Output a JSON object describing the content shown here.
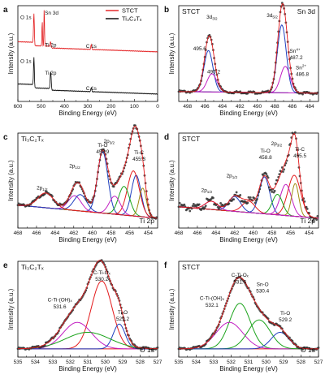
{
  "chart_data": [
    {
      "panel": "a",
      "type": "line",
      "xlabel": "Binding Energy (eV)",
      "ylabel": "Intensity (a.u.)",
      "xlim": [
        600,
        0
      ],
      "xticks": [
        600,
        500,
        400,
        300,
        200,
        100,
        0
      ],
      "legend": {
        "placement": "top-right",
        "entries": [
          "STCT",
          "Ti₃C₂Tₓ"
        ]
      },
      "series": [
        {
          "name": "STCT",
          "color": "#e31a1c",
          "offset": 0.5,
          "peaks": [
            [
              531,
              0.38,
              4
            ],
            [
              495.5,
              0.3,
              3
            ],
            [
              487,
              0.46,
              3
            ],
            [
              459,
              0.07,
              4
            ],
            [
              285,
              0.06,
              4
            ]
          ]
        },
        {
          "name": "Ti₃C₂Tₓ",
          "color": "#000000",
          "offset": 0.0,
          "peaks": [
            [
              531,
              0.36,
              4
            ],
            [
              459,
              0.22,
              5
            ],
            [
              285,
              0.05,
              4
            ]
          ]
        }
      ],
      "annotations": [
        {
          "text": "O 1s",
          "x": 531
        },
        {
          "text": "Sn 3d",
          "x": 490
        },
        {
          "text": "Ti 2p",
          "x": 459
        },
        {
          "text": "C 1s",
          "x": 285
        },
        {
          "text": "O 1s",
          "x": 531
        },
        {
          "text": "Ti 2p",
          "x": 459
        },
        {
          "text": "C 1s",
          "x": 285
        }
      ]
    },
    {
      "panel": "b",
      "type": "line",
      "title": "STCT",
      "corner_label": "Sn 3d",
      "xlabel": "Binding Energy (eV)",
      "ylabel": "Intensity (a.u.)",
      "xlim": [
        499,
        483
      ],
      "xticks": [
        498,
        496,
        494,
        492,
        490,
        488,
        486,
        484
      ],
      "components": [
        {
          "color": "#1f3fbf",
          "center": 495.6,
          "height": 0.5,
          "fwhm": 1.2
        },
        {
          "color": "#c21fc2",
          "center": 495.2,
          "height": 0.22,
          "fwhm": 1.3
        },
        {
          "color": "#1f3fbf",
          "center": 487.2,
          "height": 0.82,
          "fwhm": 1.2
        },
        {
          "color": "#c21fc2",
          "center": 486.8,
          "height": 0.32,
          "fwhm": 1.3
        }
      ],
      "annotations": [
        {
          "text": "3d",
          "sub": "3/2"
        },
        {
          "text": "3d",
          "sub": "5/2"
        },
        {
          "text": "495.6"
        },
        {
          "text": "495.2"
        },
        {
          "text": "Sn",
          "sup": "4+",
          "value": "487.2"
        },
        {
          "text": "Sn",
          "sup": "2+",
          "value": "486.8"
        }
      ]
    },
    {
      "panel": "c",
      "type": "line",
      "title": "Ti₃C₂Tₓ",
      "corner_label": "Ti 2p",
      "xlabel": "Binding Energy (eV)",
      "ylabel": "Intensity (a.u.)",
      "xlim": [
        468,
        453
      ],
      "xticks": [
        468,
        466,
        464,
        462,
        460,
        458,
        456,
        454
      ],
      "components": [
        {
          "color": "#1f3fbf",
          "center": 458.9,
          "height": 0.75,
          "fwhm": 1.3
        },
        {
          "color": "#1f3fbf",
          "center": 455.3,
          "height": 0.5,
          "fwhm": 1.2
        },
        {
          "color": "#e31a1c",
          "center": 455.6,
          "height": 0.55,
          "fwhm": 1.5
        },
        {
          "color": "#1aa31a",
          "center": 456.6,
          "height": 0.35,
          "fwhm": 1.4
        },
        {
          "color": "#c21fc2",
          "center": 457.6,
          "height": 0.22,
          "fwhm": 1.4
        },
        {
          "color": "#a08a10",
          "center": 454.6,
          "height": 0.35,
          "fwhm": 0.9
        },
        {
          "color": "#c21fc2",
          "center": 461.9,
          "height": 0.18,
          "fwhm": 1.6
        },
        {
          "color": "#1f3fbf",
          "center": 461.3,
          "height": 0.2,
          "fwhm": 1.6
        },
        {
          "color": "#e31a1c",
          "center": 465,
          "height": 0.18,
          "fwhm": 2.0
        }
      ],
      "annotations": [
        {
          "text": "Ti-O",
          "value": "458.9"
        },
        {
          "text": "Ti-C",
          "value": "455.3"
        },
        {
          "text": "2p",
          "sub": "1/2"
        },
        {
          "text": "2p",
          "sub": "3/2"
        },
        {
          "text": "2p",
          "sub": "1/2"
        }
      ]
    },
    {
      "panel": "d",
      "type": "line",
      "title": "STCT",
      "corner_label": "Ti 2p",
      "xlabel": "Binding Energy (eV)",
      "ylabel": "Intensity (a.u.)",
      "xlim": [
        468,
        453
      ],
      "xticks": [
        468,
        466,
        464,
        462,
        460,
        458,
        456,
        454
      ],
      "components": [
        {
          "color": "#1f3fbf",
          "center": 458.8,
          "height": 0.45,
          "fwhm": 1.3
        },
        {
          "color": "#e31a1c",
          "center": 455.6,
          "height": 0.5,
          "fwhm": 1.6
        },
        {
          "color": "#c21fc2",
          "center": 456.5,
          "height": 0.38,
          "fwhm": 1.4
        },
        {
          "color": "#1aa31a",
          "center": 457.4,
          "height": 0.25,
          "fwhm": 1.3
        },
        {
          "color": "#a08a10",
          "center": 455.5,
          "height": 0.4,
          "fwhm": 0.9
        },
        {
          "color": "#1f3fbf",
          "center": 462,
          "height": 0.18,
          "fwhm": 1.5
        },
        {
          "color": "#e31a1c",
          "center": 460.5,
          "height": 0.14,
          "fwhm": 1.6
        },
        {
          "color": "#c21fc2",
          "center": 464.5,
          "height": 0.1,
          "fwhm": 1.6
        }
      ],
      "annotations": [
        {
          "text": "Ti-O",
          "value": "458.8"
        },
        {
          "text": "Ti-C",
          "value": "455.5"
        },
        {
          "text": "2p",
          "sub": "1/2"
        },
        {
          "text": "2p",
          "sub": "3/2"
        },
        {
          "text": "2p",
          "sub": "1/2"
        }
      ]
    },
    {
      "panel": "e",
      "type": "line",
      "title": "Ti₃C₂Tₓ",
      "corner_label": "O 1s",
      "xlabel": "Binding Energy (eV)",
      "ylabel": "Intensity (a.u.)",
      "xlim": [
        535,
        527
      ],
      "xticks": [
        535,
        534,
        533,
        532,
        531,
        530,
        529,
        528,
        527
      ],
      "components": [
        {
          "color": "#e31a1c",
          "center": 530.2,
          "height": 0.82,
          "fwhm": 1.4
        },
        {
          "color": "#c21fc2",
          "center": 531.6,
          "height": 0.32,
          "fwhm": 1.9
        },
        {
          "color": "#1f3fbf",
          "center": 529.2,
          "height": 0.3,
          "fwhm": 0.8
        },
        {
          "color": "#1aa31a",
          "center": 531.0,
          "height": 0.2,
          "fwhm": 3.0
        }
      ],
      "annotations": [
        {
          "text": "C-Ti-Oₓ",
          "value": "530.2"
        },
        {
          "text": "C-Ti-(OH)ₓ",
          "value": "531.6"
        },
        {
          "text": "Ti-O",
          "value": "529.2"
        }
      ]
    },
    {
      "panel": "f",
      "type": "line",
      "title": "STCT",
      "corner_label": "O 1s",
      "xlabel": "Binding Energy (eV)",
      "ylabel": "Intensity (a.u.)",
      "xlim": [
        535,
        527
      ],
      "xticks": [
        535,
        534,
        533,
        532,
        531,
        530,
        529,
        528,
        527
      ],
      "components": [
        {
          "color": "#1aa31a",
          "center": 531.5,
          "height": 0.55,
          "fwhm": 1.4
        },
        {
          "color": "#c21fc2",
          "center": 532.1,
          "height": 0.32,
          "fwhm": 1.8
        },
        {
          "color": "#1aa31a",
          "center": 530.4,
          "height": 0.35,
          "fwhm": 1.5
        },
        {
          "color": "#1f3fbf",
          "center": 529.2,
          "height": 0.2,
          "fwhm": 1.2
        }
      ],
      "annotations": [
        {
          "text": "C-Ti-Oₓ",
          "value": "531.5"
        },
        {
          "text": "C-Ti-(OH)ₓ",
          "value": "532.1"
        },
        {
          "text": "Sn-O",
          "value": "530.4"
        },
        {
          "text": "Ti-O",
          "value": "529.2"
        }
      ]
    }
  ]
}
